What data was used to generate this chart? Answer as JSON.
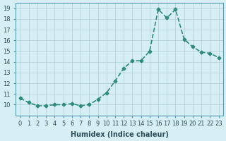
{
  "x": [
    0,
    1,
    2,
    3,
    4,
    5,
    6,
    7,
    8,
    9,
    10,
    11,
    12,
    13,
    14,
    15,
    16,
    17,
    18,
    19,
    20,
    21,
    22,
    23
  ],
  "y": [
    10.6,
    10.2,
    9.9,
    9.9,
    10.0,
    10.0,
    10.1,
    9.9,
    10.0,
    10.5,
    11.1,
    12.2,
    13.4,
    14.1,
    14.1,
    15.0,
    18.9,
    18.1,
    18.9,
    16.1,
    15.4,
    14.9,
    14.8,
    14.4
  ],
  "line_color": "#2e8b7a",
  "marker": "D",
  "marker_size": 2.5,
  "bg_color": "#d6eff5",
  "grid_color": "#b0cdd8",
  "xlabel": "Humidex (Indice chaleur)",
  "xlim": [
    -0.5,
    23.5
  ],
  "ylim": [
    9.0,
    19.5
  ],
  "yticks": [
    10,
    11,
    12,
    13,
    14,
    15,
    16,
    17,
    18,
    19
  ],
  "xticks": [
    0,
    1,
    2,
    3,
    4,
    5,
    6,
    7,
    8,
    9,
    10,
    11,
    12,
    13,
    14,
    15,
    16,
    17,
    18,
    19,
    20,
    21,
    22,
    23
  ],
  "xtick_labels": [
    "0",
    "1",
    "2",
    "3",
    "4",
    "5",
    "6",
    "7",
    "8",
    "9",
    "10",
    "11",
    "12",
    "13",
    "14",
    "15",
    "16",
    "17",
    "18",
    "19",
    "20",
    "21",
    "22",
    "23"
  ],
  "tick_fontsize": 6,
  "xlabel_fontsize": 7,
  "linewidth": 1.2
}
